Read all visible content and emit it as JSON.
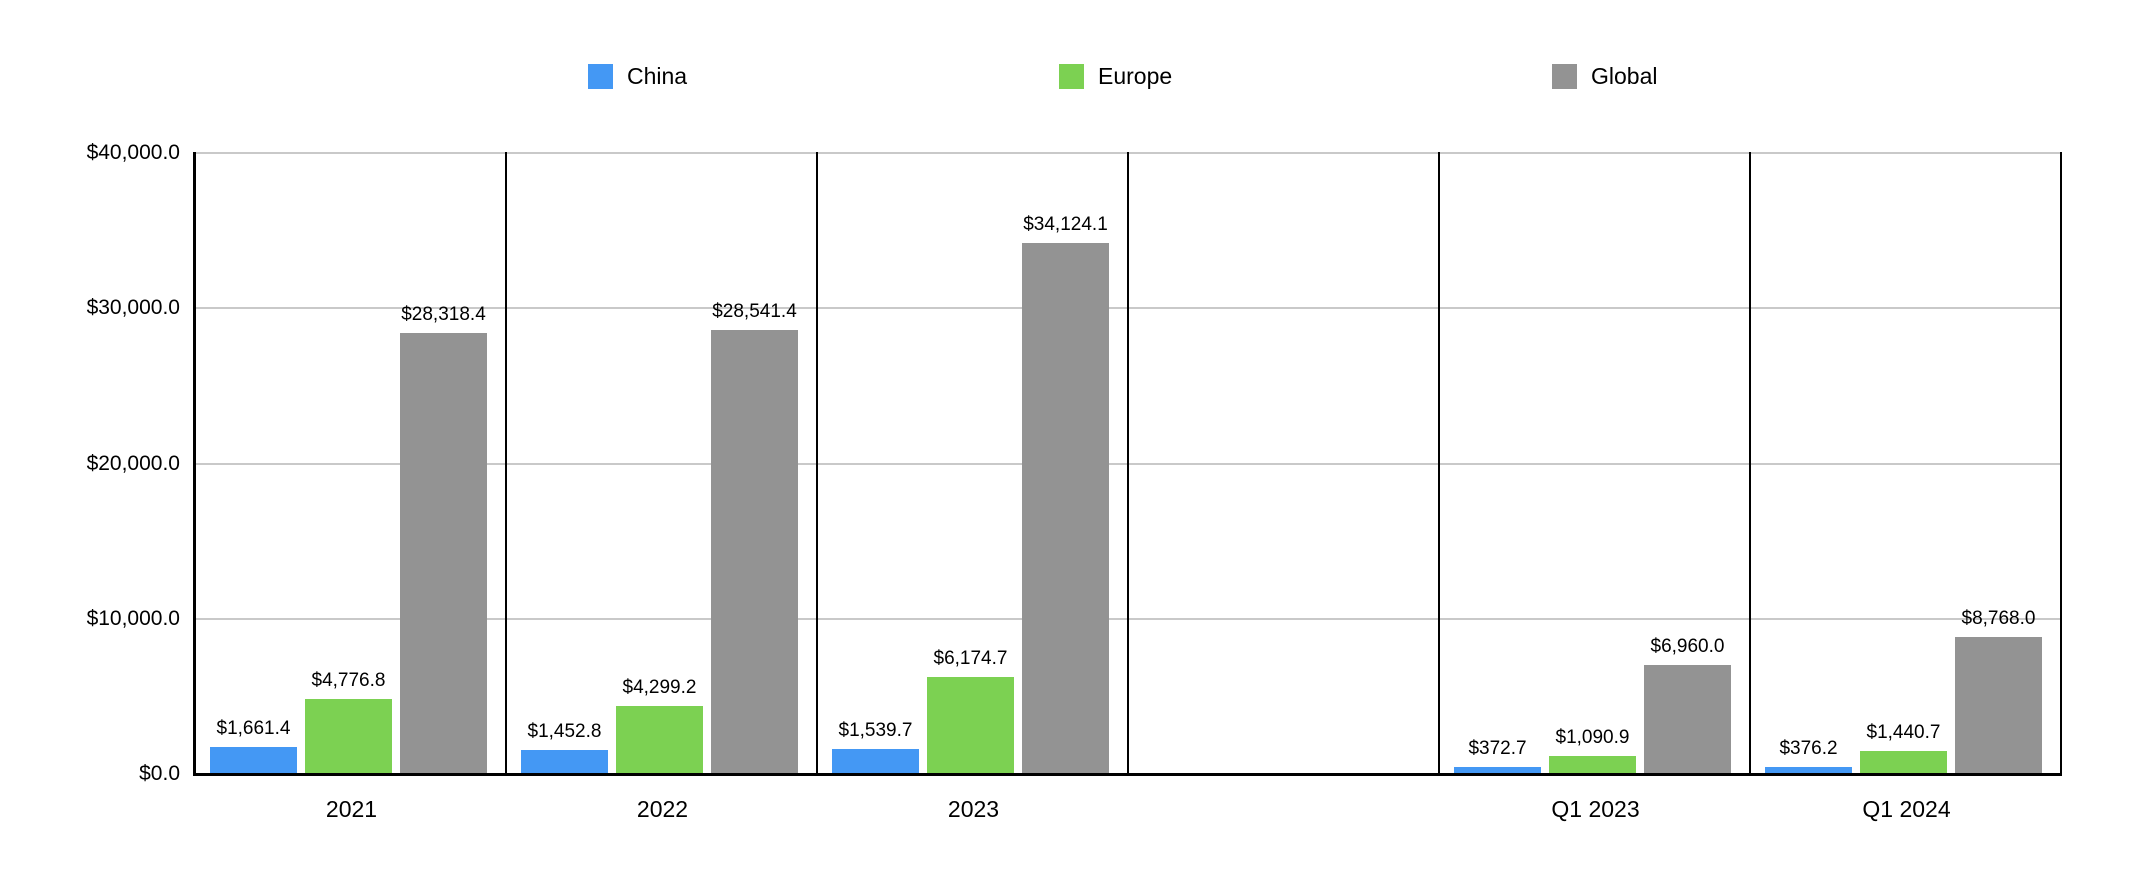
{
  "colors": {
    "china": "#4498F4",
    "europe": "#7CD152",
    "global": "#939393",
    "grid": "#C9C9C9",
    "axis": "#000000",
    "text": "#000000",
    "background": "#FFFFFF"
  },
  "legend": {
    "items": [
      {
        "label": "China",
        "color": "#4498F4"
      },
      {
        "label": "Europe",
        "color": "#7CD152"
      },
      {
        "label": "Global",
        "color": "#939393"
      }
    ]
  },
  "chart_data": {
    "type": "bar",
    "title": "",
    "xlabel": "",
    "ylabel": "",
    "categories": [
      "2021",
      "2022",
      "2023",
      "",
      "Q1 2023",
      "Q1 2024"
    ],
    "series": [
      {
        "name": "China",
        "color": "#4498F4",
        "values": [
          1661.4,
          1452.8,
          1539.7,
          null,
          372.7,
          376.2
        ],
        "labels": [
          "$1,661.4",
          "$1,452.8",
          "$1,539.7",
          "",
          "$372.7",
          "$376.2"
        ]
      },
      {
        "name": "Europe",
        "color": "#7CD152",
        "values": [
          4776.8,
          4299.2,
          6174.7,
          null,
          1090.9,
          1440.7
        ],
        "labels": [
          "$4,776.8",
          "$4,299.2",
          "$6,174.7",
          "",
          "$1,090.9",
          "$1,440.7"
        ]
      },
      {
        "name": "Global",
        "color": "#939393",
        "values": [
          28318.4,
          28541.4,
          34124.1,
          null,
          6960.0,
          8768.0
        ],
        "labels": [
          "$28,318.4",
          "$28,541.4",
          "$34,124.1",
          "",
          "$6,960.0",
          "$8,768.0"
        ]
      }
    ],
    "y_axis": {
      "min": 0,
      "max": 40000,
      "tick_labels": [
        "$40,000.0",
        "$30,000.0",
        "$20,000.0",
        "$10,000.0",
        "$0.0"
      ]
    },
    "grid": true,
    "legend_position": "top"
  }
}
